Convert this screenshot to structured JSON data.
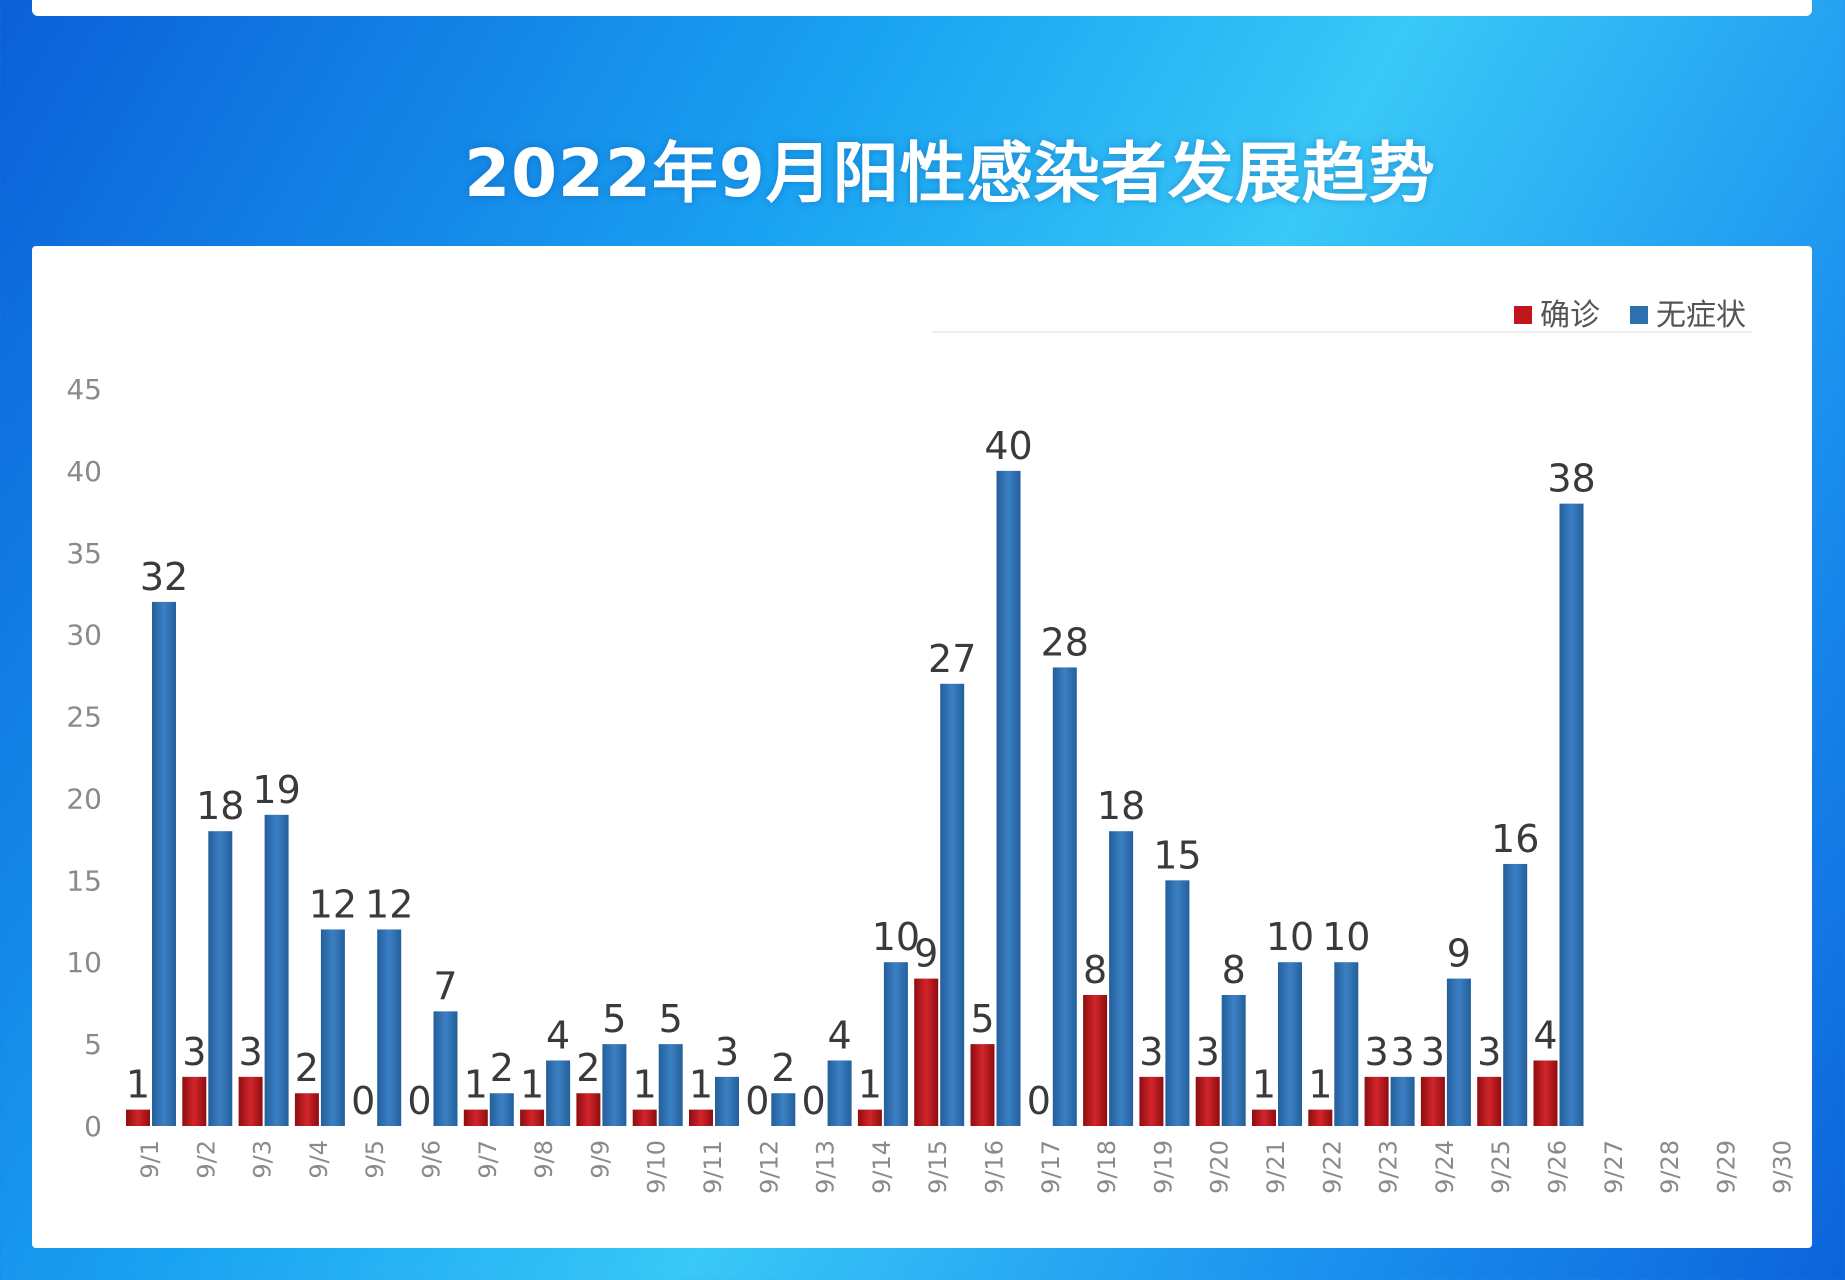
{
  "title": "2022年9月阳性感染者发展趋势",
  "chart_data": {
    "type": "bar",
    "categories": [
      "9/1",
      "9/2",
      "9/3",
      "9/4",
      "9/5",
      "9/6",
      "9/7",
      "9/8",
      "9/9",
      "9/10",
      "9/11",
      "9/12",
      "9/13",
      "9/14",
      "9/15",
      "9/16",
      "9/17",
      "9/18",
      "9/19",
      "9/20",
      "9/21",
      "9/22",
      "9/23",
      "9/24",
      "9/25",
      "9/26",
      "9/27",
      "9/28",
      "9/29",
      "9/30"
    ],
    "series": [
      {
        "name": "确诊",
        "color": "#c0161c",
        "values": [
          1,
          3,
          3,
          2,
          0,
          0,
          1,
          1,
          2,
          1,
          1,
          0,
          0,
          1,
          9,
          5,
          0,
          8,
          3,
          3,
          1,
          1,
          3,
          3,
          3,
          4,
          null,
          null,
          null,
          null
        ]
      },
      {
        "name": "无症状",
        "color": "#2e6fb0",
        "values": [
          32,
          18,
          19,
          12,
          12,
          7,
          2,
          4,
          5,
          5,
          3,
          2,
          4,
          10,
          27,
          40,
          28,
          18,
          15,
          8,
          10,
          10,
          3,
          9,
          16,
          38,
          null,
          null,
          null,
          null
        ]
      }
    ],
    "ylim": [
      0,
      45
    ],
    "yticks": [
      0,
      5,
      10,
      15,
      20,
      25,
      30,
      35,
      40,
      45
    ],
    "legend": "top-right",
    "grid": false
  }
}
